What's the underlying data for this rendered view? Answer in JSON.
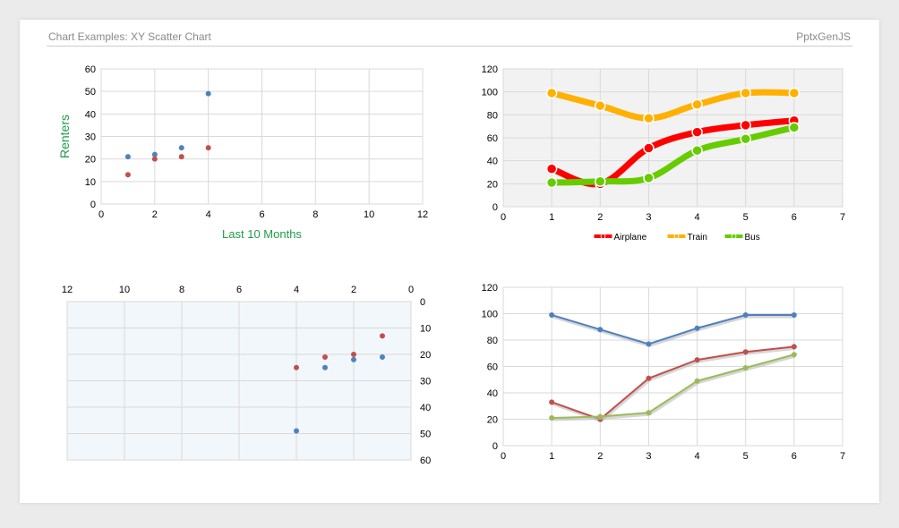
{
  "header": {
    "title": "Chart Examples: XY Scatter Chart",
    "brand": "PptxGenJS"
  },
  "colors": {
    "blue": "#4f81bd",
    "red": "#c0504d",
    "green": "#9bbb59",
    "airplane": "#ff0000",
    "train": "#ffb000",
    "bus": "#66cc00",
    "axis_title": "#1f9d4a",
    "grid": "#d9d9d9"
  },
  "chart_data": [
    {
      "type": "scatter",
      "ylabel": "Renters",
      "xlabel": "Last 10 Months",
      "xlim": [
        0,
        12
      ],
      "ylim": [
        0,
        60
      ],
      "xticks": [
        0,
        2,
        4,
        6,
        8,
        10,
        12
      ],
      "yticks": [
        0,
        10,
        20,
        30,
        40,
        50,
        60
      ],
      "grid": true,
      "legend": "none",
      "series": [
        {
          "color": "#4f81bd",
          "points": [
            [
              1,
              21
            ],
            [
              2,
              22
            ],
            [
              3,
              25
            ],
            [
              4,
              49
            ]
          ]
        },
        {
          "color": "#c0504d",
          "points": [
            [
              1,
              13
            ],
            [
              2,
              20
            ],
            [
              3,
              21
            ],
            [
              4,
              25
            ]
          ]
        }
      ]
    },
    {
      "type": "line",
      "smooth": true,
      "xlim": [
        0,
        7
      ],
      "ylim": [
        0,
        120
      ],
      "xticks": [
        0,
        1,
        2,
        3,
        4,
        5,
        6,
        7
      ],
      "yticks": [
        0,
        20,
        40,
        60,
        80,
        100,
        120
      ],
      "grid": true,
      "legend": "bottom",
      "series": [
        {
          "name": "Airplane",
          "color": "#ff0000",
          "points": [
            [
              1,
              33
            ],
            [
              2,
              20
            ],
            [
              3,
              51
            ],
            [
              4,
              65
            ],
            [
              5,
              71
            ],
            [
              6,
              75
            ]
          ]
        },
        {
          "name": "Train",
          "color": "#ffb000",
          "points": [
            [
              1,
              99
            ],
            [
              2,
              88
            ],
            [
              3,
              77
            ],
            [
              4,
              89
            ],
            [
              5,
              99
            ],
            [
              6,
              99
            ]
          ]
        },
        {
          "name": "Bus",
          "color": "#66cc00",
          "points": [
            [
              1,
              21
            ],
            [
              2,
              22
            ],
            [
              3,
              25
            ],
            [
              4,
              49
            ],
            [
              5,
              59
            ],
            [
              6,
              69
            ]
          ]
        }
      ]
    },
    {
      "type": "scatter",
      "x_reversed": true,
      "y_reversed": true,
      "xlim": [
        0,
        12
      ],
      "ylim": [
        0,
        60
      ],
      "xticks": [
        12,
        10,
        8,
        6,
        4,
        2,
        0
      ],
      "yticks": [
        0,
        10,
        20,
        30,
        40,
        50,
        60
      ],
      "grid": true,
      "legend": "none",
      "series": [
        {
          "color": "#4f81bd",
          "points": [
            [
              1,
              21
            ],
            [
              2,
              22
            ],
            [
              3,
              25
            ],
            [
              4,
              49
            ]
          ]
        },
        {
          "color": "#c0504d",
          "points": [
            [
              1,
              13
            ],
            [
              2,
              20
            ],
            [
              3,
              21
            ],
            [
              4,
              25
            ]
          ]
        }
      ]
    },
    {
      "type": "line",
      "xlim": [
        0,
        7
      ],
      "ylim": [
        0,
        120
      ],
      "xticks": [
        0,
        1,
        2,
        3,
        4,
        5,
        6,
        7
      ],
      "yticks": [
        0,
        20,
        40,
        60,
        80,
        100,
        120
      ],
      "grid": true,
      "legend": "none",
      "series": [
        {
          "color": "#4f81bd",
          "points": [
            [
              1,
              99
            ],
            [
              2,
              88
            ],
            [
              3,
              77
            ],
            [
              4,
              89
            ],
            [
              5,
              99
            ],
            [
              6,
              99
            ]
          ]
        },
        {
          "color": "#c0504d",
          "points": [
            [
              1,
              33
            ],
            [
              2,
              20
            ],
            [
              3,
              51
            ],
            [
              4,
              65
            ],
            [
              5,
              71
            ],
            [
              6,
              75
            ]
          ]
        },
        {
          "color": "#9bbb59",
          "points": [
            [
              1,
              21
            ],
            [
              2,
              22
            ],
            [
              3,
              25
            ],
            [
              4,
              49
            ],
            [
              5,
              59
            ],
            [
              6,
              69
            ]
          ]
        }
      ]
    }
  ]
}
